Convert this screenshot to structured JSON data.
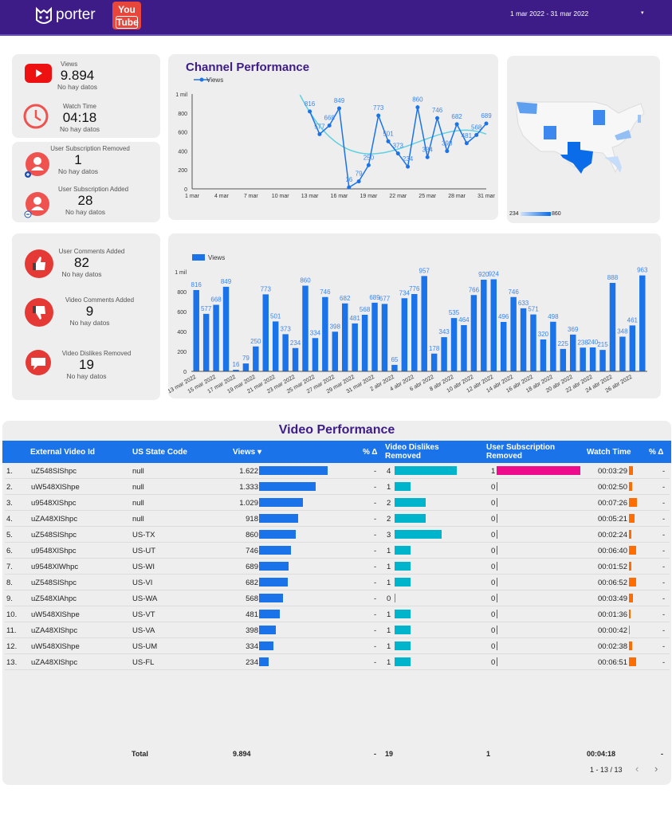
{
  "header": {
    "brand": "porter",
    "youtube_logo": [
      "You",
      "Tube"
    ],
    "date_range": "1 mar 2022 - 31 mar 2022",
    "colors": {
      "bg": "#3d1c87"
    }
  },
  "kpis": [
    {
      "label": "Views",
      "value": "9.894",
      "sub": "No hay datos",
      "icon": "youtube-play-icon"
    },
    {
      "label": "Watch Time",
      "value": "04:18",
      "sub": "No hay datos",
      "icon": "clock-icon"
    },
    {
      "label": "User Subscription Removed",
      "value": "1",
      "sub": "No hay datos",
      "icon": "user-add-icon"
    },
    {
      "label": "User Subscription Added",
      "value": "28",
      "sub": "No hay datos",
      "icon": "user-remove-icon"
    },
    {
      "label": "User Comments Added",
      "value": "82",
      "sub": "No hay datos",
      "icon": "thumbs-up-icon"
    },
    {
      "label": "Video Comments Added",
      "value": "9",
      "sub": "No hay datos",
      "icon": "thumbs-down-icon"
    },
    {
      "label": "Video Dislikes Removed",
      "value": "19",
      "sub": "No hay datos",
      "icon": "comment-icon"
    }
  ],
  "map": {
    "legend_min": "234",
    "legend_max": "860",
    "states": {
      "US-TX": 860,
      "US-UT": 746,
      "US-WI": 689,
      "US-WA": 568,
      "US-VT": 481,
      "US-VA": 398,
      "US-FL": 234
    }
  },
  "chart_data": [
    {
      "type": "line",
      "title": "Channel Performance",
      "legend": "Views",
      "trendline": true,
      "x_ticks": [
        "1 mar",
        "4 mar",
        "7 mar",
        "10 mar",
        "13 mar",
        "16 mar",
        "19 mar",
        "22 mar",
        "25 mar",
        "28 mar",
        "31 mar"
      ],
      "y_ticks": [
        "0",
        "200",
        "400",
        "600",
        "800",
        "1 mil"
      ],
      "ylim": [
        0,
        1000
      ],
      "xlim": [
        1,
        31
      ],
      "x": [
        13,
        14,
        15,
        16,
        17,
        18,
        19,
        20,
        21,
        22,
        23,
        24,
        25,
        26,
        27,
        28,
        29,
        30,
        31
      ],
      "values": [
        816,
        577,
        668,
        849,
        16,
        79,
        250,
        773,
        501,
        373,
        234,
        860,
        334,
        746,
        398,
        682,
        481,
        568,
        689
      ]
    },
    {
      "type": "bar",
      "legend": "Views",
      "y_ticks": [
        "0",
        "200",
        "400",
        "600",
        "800",
        "1 mil"
      ],
      "ylim": [
        0,
        1000
      ],
      "categories": [
        "13 mar 2022",
        "14 mar 2022",
        "15 mar 2022",
        "16 mar 2022",
        "17 mar 2022",
        "18 mar 2022",
        "19 mar 2022",
        "20 mar 2022",
        "21 mar 2022",
        "22 mar 2022",
        "23 mar 2022",
        "24 mar 2022",
        "25 mar 2022",
        "26 mar 2022",
        "27 mar 2022",
        "28 mar 2022",
        "29 mar 2022",
        "30 mar 2022",
        "31 mar 2022",
        "1 abr 2022",
        "2 abr 2022",
        "3 abr 2022",
        "4 abr 2022",
        "5 abr 2022",
        "6 abr 2022",
        "7 abr 2022",
        "8 abr 2022",
        "9 abr 2022",
        "10 abr 2022",
        "11 abr 2022",
        "12 abr 2022",
        "13 abr 2022",
        "14 abr 2022",
        "15 abr 2022",
        "16 abr 2022",
        "17 abr 2022",
        "18 abr 2022",
        "19 abr 2022",
        "20 abr 2022",
        "21 abr 2022",
        "22 abr 2022",
        "23 abr 2022",
        "24 abr 2022",
        "25 abr 2022",
        "26 abr 2022",
        "27 abr 2022"
      ],
      "values": [
        816,
        577,
        668,
        849,
        16,
        79,
        250,
        773,
        501,
        373,
        234,
        860,
        334,
        746,
        398,
        682,
        481,
        568,
        689,
        677,
        65,
        734,
        776,
        957,
        178,
        343,
        535,
        464,
        766,
        920,
        924,
        496,
        746,
        633,
        571,
        320,
        498,
        225,
        369,
        238,
        240,
        215,
        888,
        348,
        461,
        963
      ]
    }
  ],
  "table": {
    "title": "Video Performance",
    "headers": [
      "External Video Id",
      "US State Code",
      "Views ▾",
      "% Δ",
      "Video Dislikes Removed",
      "User Subscription Removed",
      "Watch Time",
      "% Δ"
    ],
    "rows": [
      [
        "1.",
        "uZ548SlShpc",
        "null",
        "1.622",
        "-",
        "4",
        "1",
        "00:03:29",
        "-"
      ],
      [
        "2.",
        "uW548XlShpe",
        "null",
        "1.333",
        "-",
        "1",
        "0",
        "00:02:50",
        "-"
      ],
      [
        "3.",
        "u9548XlShpc",
        "null",
        "1.029",
        "-",
        "2",
        "0",
        "00:07:26",
        "-"
      ],
      [
        "4.",
        "uZA48XlShpc",
        "null",
        "918",
        "-",
        "2",
        "0",
        "00:05:21",
        "-"
      ],
      [
        "5.",
        "uZ548SlShpc",
        "US-TX",
        "860",
        "-",
        "3",
        "0",
        "00:02:24",
        "-"
      ],
      [
        "6.",
        "u9548XlShpc",
        "US-UT",
        "746",
        "-",
        "1",
        "0",
        "00:06:40",
        "-"
      ],
      [
        "7.",
        "u9548XlWhpc",
        "US-WI",
        "689",
        "-",
        "1",
        "0",
        "00:01:52",
        "-"
      ],
      [
        "8.",
        "uZ548SlShpc",
        "US-VI",
        "682",
        "-",
        "1",
        "0",
        "00:06:52",
        "-"
      ],
      [
        "9.",
        "uZ548XlAhpc",
        "US-WA",
        "568",
        "-",
        "0",
        "0",
        "00:03:49",
        "-"
      ],
      [
        "10.",
        "uW548XlShpe",
        "US-VT",
        "481",
        "-",
        "1",
        "0",
        "00:01:36",
        "-"
      ],
      [
        "11.",
        "uZA48XlShpc",
        "US-VA",
        "398",
        "-",
        "1",
        "0",
        "00:00:42",
        "-"
      ],
      [
        "12.",
        "uW548XlShpe",
        "US-UM",
        "334",
        "-",
        "1",
        "0",
        "00:02:38",
        "-"
      ],
      [
        "13.",
        "uZA48XlShpc",
        "US-FL",
        "234",
        "-",
        "1",
        "0",
        "00:06:51",
        "-"
      ]
    ],
    "totals": {
      "label": "Total",
      "views": "9.894",
      "views_delta": "-",
      "dislikes": "19",
      "subs": "1",
      "watch": "00:04:18",
      "watch_delta": "-"
    },
    "pagination": "1 - 13 / 13",
    "colors": {
      "header": "#1a73e8",
      "views": "#1a73e8",
      "dislikes": "#00b4cc",
      "subs": "#ec0c8c",
      "watch": "#ff6d00"
    }
  }
}
